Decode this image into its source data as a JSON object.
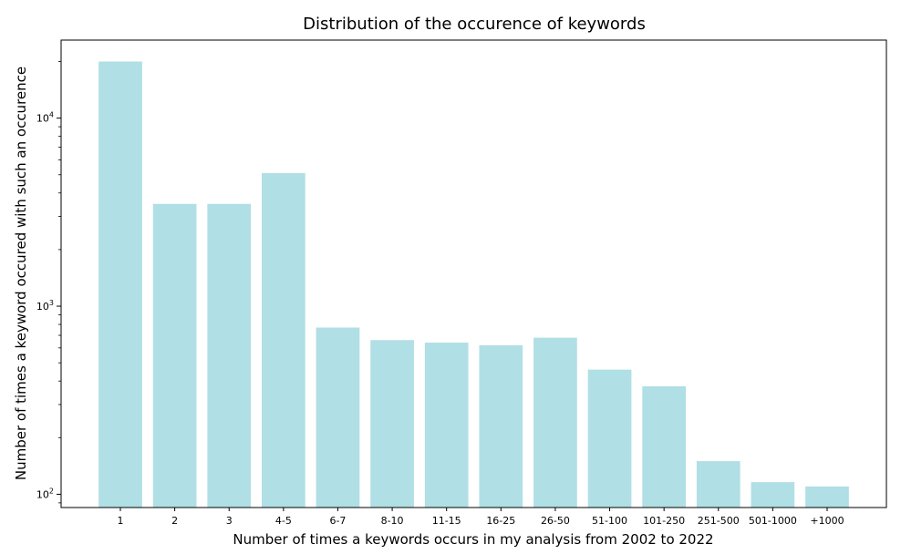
{
  "chart_data": {
    "type": "bar",
    "title": "Distribution of the occurence of keywords",
    "xlabel": "Number of times a keywords occurs in my analysis from 2002 to 2022",
    "ylabel": "Number of times a keyword occured with such an occurence",
    "yscale": "log",
    "ylim": [
      85,
      26000
    ],
    "yticks": [
      {
        "value": 100,
        "base": "10",
        "exp": "2"
      },
      {
        "value": 1000,
        "base": "10",
        "exp": "3"
      },
      {
        "value": 10000,
        "base": "10",
        "exp": "4"
      }
    ],
    "categories": [
      "1",
      "2",
      "3",
      "4-5",
      "6-7",
      "8-10",
      "11-15",
      "16-25",
      "26-50",
      "51-100",
      "101-250",
      "251-500",
      "501-1000",
      "+1000"
    ],
    "values": [
      20000,
      3500,
      3500,
      5100,
      770,
      660,
      640,
      620,
      680,
      460,
      375,
      150,
      116,
      110
    ],
    "bar_color": "#b0dfe5",
    "grid": false,
    "legend": "none"
  }
}
